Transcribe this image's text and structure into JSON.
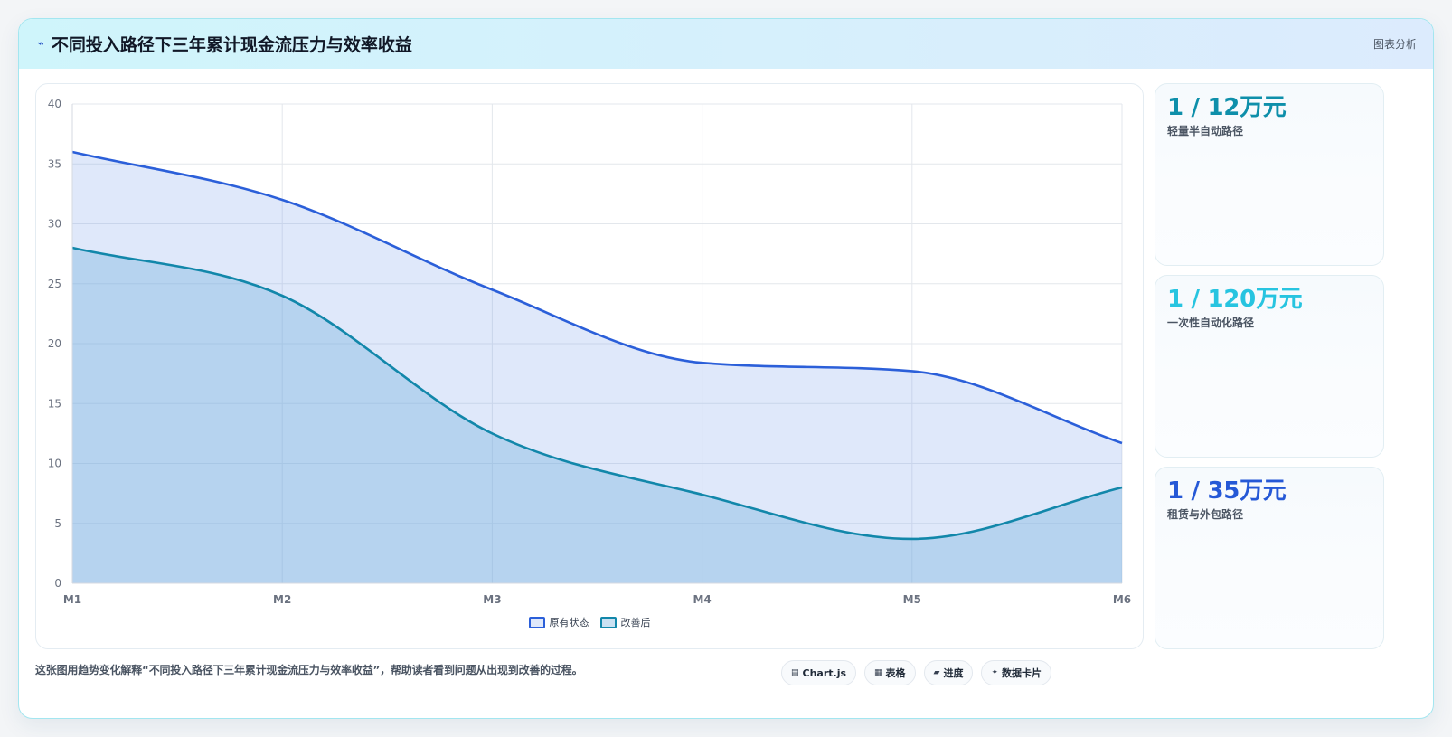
{
  "header": {
    "bolt_icon": "⌁",
    "title": "不同投入路径下三年累计现金流压力与效率收益",
    "tag": "图表分析"
  },
  "stats": [
    {
      "value": "1 / 12万元",
      "label": "轻量半自动路径",
      "color": "#0e8faa"
    },
    {
      "value": "1 / 120万元",
      "label": "一次性自动化路径",
      "color": "#27c4e0"
    },
    {
      "value": "1 / 35万元",
      "label": "租赁与外包路径",
      "color": "#2558d6"
    }
  ],
  "footer": {
    "description": "这张图用趋势变化解释“不同投入路径下三年累计现金流压力与效率收益”，帮助读者看到问题从出现到改善的过程。",
    "chips": [
      {
        "icon": "▤",
        "label": "Chart.js"
      },
      {
        "icon": "▦",
        "label": "表格"
      },
      {
        "icon": "▰",
        "label": "进度"
      },
      {
        "icon": "✦",
        "label": "数据卡片"
      }
    ]
  },
  "chart_data": {
    "type": "area",
    "categories": [
      "M1",
      "M2",
      "M3",
      "M4",
      "M5",
      "M6"
    ],
    "ylim": [
      0,
      40
    ],
    "yticks": [
      0,
      5,
      10,
      15,
      20,
      25,
      30,
      35,
      40
    ],
    "grid": true,
    "legend": "bottom",
    "series": [
      {
        "name": "原有状态",
        "values": [
          36,
          32,
          24.5,
          18.4,
          17.7,
          11.7
        ],
        "color": "#2b5fd9",
        "fill": "rgba(120,160,235,0.24)"
      },
      {
        "name": "改善后",
        "values": [
          28,
          24,
          12.5,
          7.4,
          3.7,
          8
        ],
        "color": "#1287aa",
        "fill": "rgba(115,175,220,0.38)"
      }
    ]
  }
}
